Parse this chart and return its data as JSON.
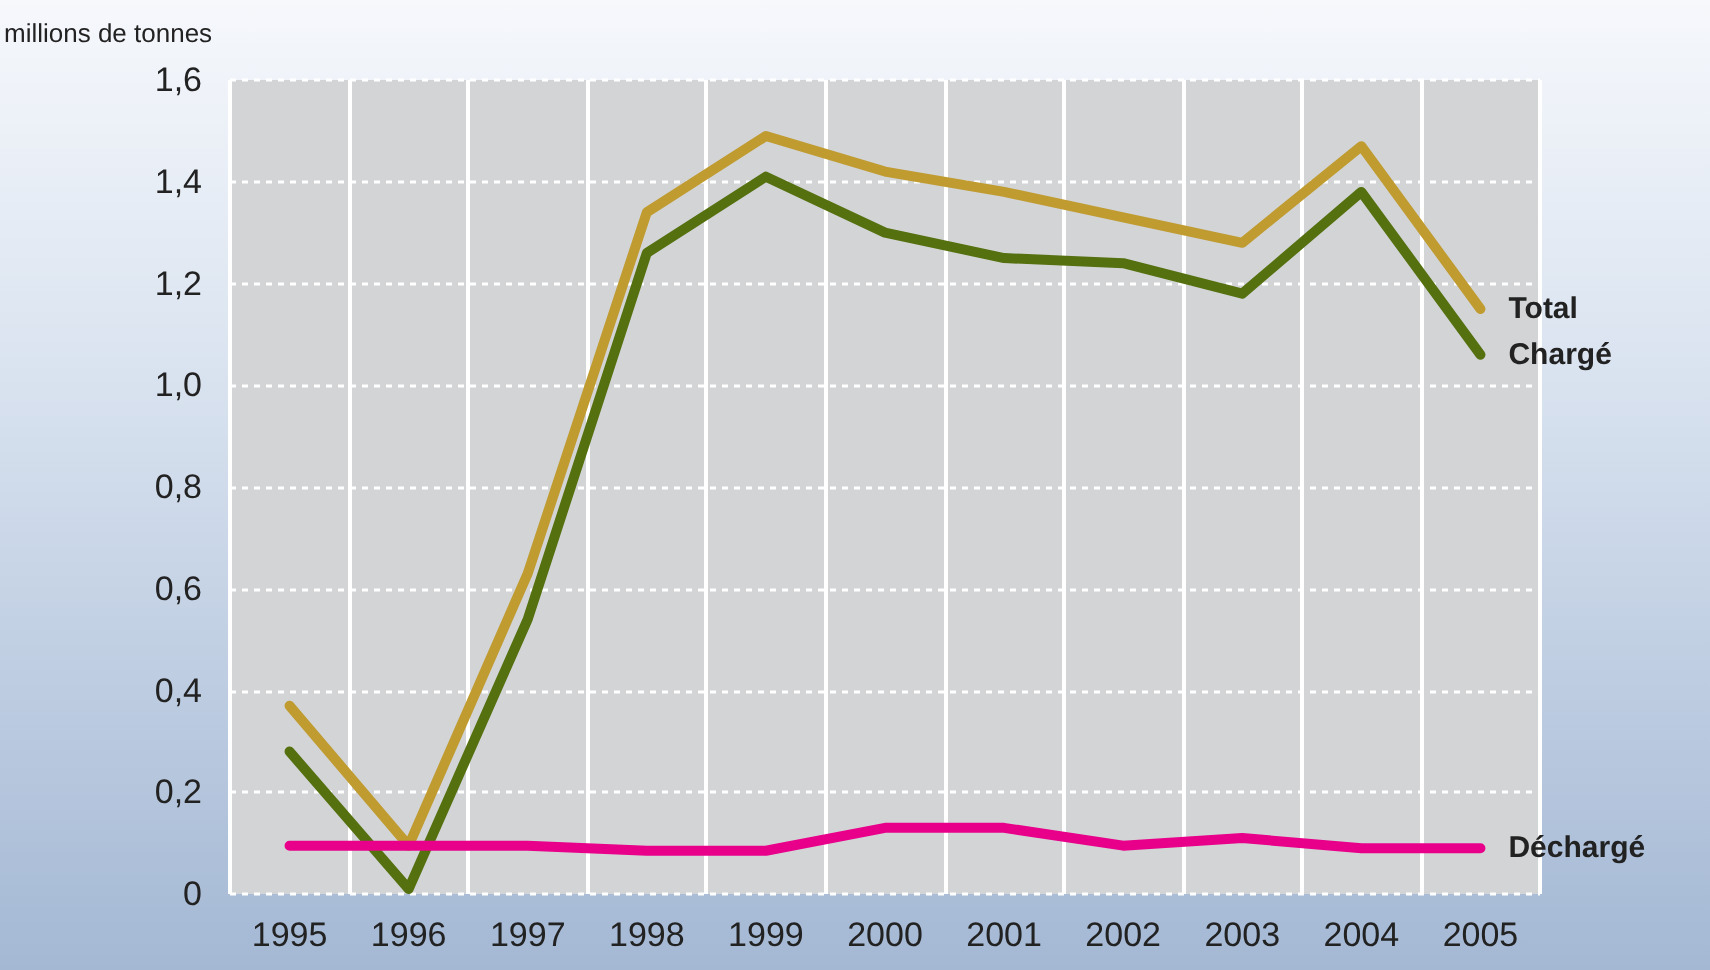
{
  "chart_data": {
    "type": "line",
    "ylabel": "millions de tonnes",
    "categories": [
      "1995",
      "1996",
      "1997",
      "1998",
      "1999",
      "2000",
      "2001",
      "2002",
      "2003",
      "2004",
      "2005"
    ],
    "series": [
      {
        "name": "Total",
        "color": "#bf9b30",
        "values": [
          0.37,
          0.095,
          0.63,
          1.34,
          1.49,
          1.42,
          1.38,
          1.33,
          1.28,
          1.47,
          1.15
        ]
      },
      {
        "name": "Chargé",
        "color": "#55700f",
        "values": [
          0.28,
          0.01,
          0.54,
          1.26,
          1.41,
          1.3,
          1.25,
          1.24,
          1.18,
          1.38,
          1.06
        ]
      },
      {
        "name": "Déchargé",
        "color": "#e8008a",
        "values": [
          0.095,
          0.095,
          0.095,
          0.085,
          0.085,
          0.13,
          0.13,
          0.095,
          0.11,
          0.09,
          0.09
        ]
      }
    ],
    "ylim": [
      0,
      1.6
    ],
    "yticks": [
      {
        "value": 0,
        "label": "0"
      },
      {
        "value": 0.2,
        "label": "0,2"
      },
      {
        "value": 0.4,
        "label": "0,4"
      },
      {
        "value": 0.6,
        "label": "0,6"
      },
      {
        "value": 0.8,
        "label": "0,8"
      },
      {
        "value": 1.0,
        "label": "1,0"
      },
      {
        "value": 1.2,
        "label": "1,2"
      },
      {
        "value": 1.4,
        "label": "1,4"
      },
      {
        "value": 1.6,
        "label": "1,6"
      }
    ],
    "grid": true,
    "legend": false,
    "marker": "none",
    "line_style": "solid"
  }
}
